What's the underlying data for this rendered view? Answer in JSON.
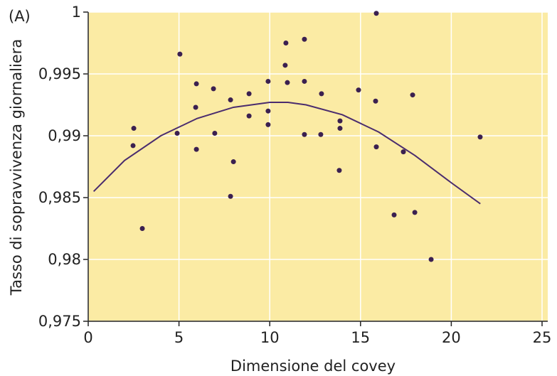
{
  "chart_data": {
    "type": "scatter",
    "panel_label": "(A)",
    "xlabel": "Dimensione del covey",
    "ylabel": "Tasso di sopravvivenza giornaliera",
    "xlim": [
      0,
      25
    ],
    "ylim": [
      0.975,
      1
    ],
    "xticks": [
      0,
      5,
      10,
      15,
      20,
      25
    ],
    "yticks": [
      {
        "value": 0.975,
        "label": "0,975"
      },
      {
        "value": 0.98,
        "label": "0,98"
      },
      {
        "value": 0.985,
        "label": "0,985"
      },
      {
        "value": 0.99,
        "label": "0,99"
      },
      {
        "value": 0.995,
        "label": "0,995"
      },
      1
    ],
    "grid": true,
    "background": "#fbeba4",
    "points": {
      "color": "#3b2050",
      "x": [
        2.51,
        2.47,
        2.98,
        5.05,
        4.9,
        5.96,
        5.92,
        5.96,
        6.9,
        6.97,
        7.84,
        8.0,
        7.84,
        8.86,
        8.86,
        9.91,
        9.91,
        9.91,
        10.85,
        10.89,
        10.97,
        11.91,
        11.91,
        11.91,
        12.85,
        12.81,
        13.87,
        13.87,
        13.83,
        14.89,
        15.87,
        15.83,
        15.87,
        17.36,
        17.87,
        16.85,
        17.99,
        18.89,
        21.59
      ],
      "y": [
        0.9906,
        0.9892,
        0.9825,
        0.9966,
        0.9902,
        0.9942,
        0.9923,
        0.9889,
        0.9938,
        0.9902,
        0.9929,
        0.9879,
        0.9851,
        0.9934,
        0.9916,
        0.9944,
        0.992,
        0.9909,
        0.9957,
        0.9975,
        0.9943,
        0.9978,
        0.9944,
        0.9901,
        0.9934,
        0.9901,
        0.9912,
        0.9906,
        0.9872,
        0.9937,
        0.9999,
        0.9928,
        0.9891,
        0.9887,
        0.9933,
        0.9836,
        0.9838,
        0.98,
        0.9899
      ]
    },
    "curve": {
      "color": "#4a2c6e",
      "x": [
        0.3,
        2,
        4,
        6,
        8,
        10,
        11,
        12,
        14,
        16,
        18,
        20,
        21.6
      ],
      "y": [
        0.9855,
        0.988,
        0.99,
        0.9914,
        0.9923,
        0.9927,
        0.9927,
        0.9925,
        0.9917,
        0.9903,
        0.9884,
        0.9862,
        0.9845
      ]
    }
  }
}
